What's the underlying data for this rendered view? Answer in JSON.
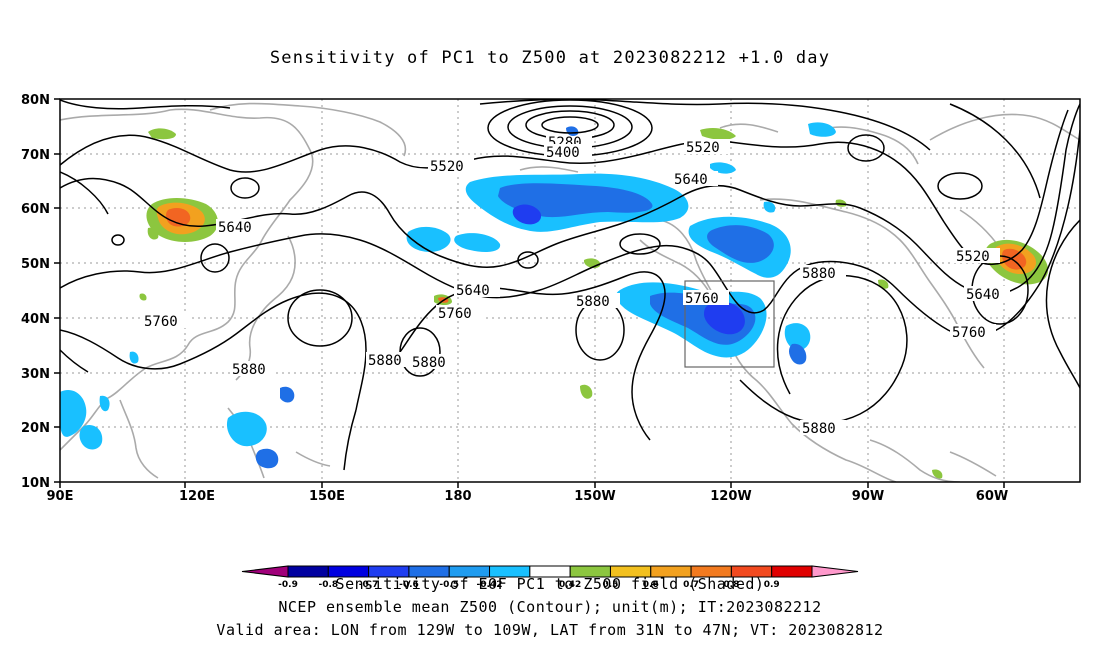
{
  "title": "Sensitivity of PC1 to Z500 at 2023082212 +1.0 day",
  "axes": {
    "lat_labels": [
      "80N",
      "70N",
      "60N",
      "50N",
      "40N",
      "30N",
      "20N",
      "10N"
    ],
    "lon_labels": [
      "90E",
      "120E",
      "150E",
      "180",
      "150W",
      "120W",
      "90W",
      "60W"
    ]
  },
  "contour_labels": [
    "5280",
    "5400",
    "5520",
    "5520",
    "5640",
    "5640",
    "5640",
    "5760",
    "5760",
    "5760",
    "5880",
    "5880",
    "5880",
    "5880",
    "5880",
    "5520",
    "5640",
    "5760",
    "5880"
  ],
  "colors": {
    "neg_dark": "#0000a0",
    "neg_mid": "#1f6fe6",
    "neg_light": "#19c0ff",
    "zero": "#ffffff",
    "pos_green": "#8cc63f",
    "pos_orange": "#f2a11f",
    "pos_deep": "#f26522",
    "coast": "#aaaaaa",
    "grid": "#999999"
  },
  "colorbar": {
    "ticks": [
      "-0.9",
      "-0.8",
      "-0.7",
      "-0.6",
      "-0.5",
      "-0.42",
      "0.42",
      "0.5",
      "0.6",
      "0.7",
      "0.8",
      "0.9"
    ],
    "colors": [
      "#a0007a",
      "#0000a0",
      "#0000e0",
      "#1f3df0",
      "#1f6fe6",
      "#1f9cf0",
      "#19c0ff",
      "#ffffff",
      "#8cc63f",
      "#f2c01f",
      "#f2a11f",
      "#f27a1f",
      "#f24a1f",
      "#e00000",
      "#ff99cc"
    ]
  },
  "colorbar_title": "Sensitivity of EOF PC1 to Z500 field (Shaded)",
  "footer": {
    "line1": "NCEP ensemble mean Z500 (Contour); unit(m); IT:2023082212",
    "line2": "Valid area: LON from 129W to 109W, LAT from 31N to 47N; VT: 2023082812"
  },
  "valid_area": {
    "lon_range_label": "129W to 109W",
    "lat_range_label": "31N to 47N"
  }
}
